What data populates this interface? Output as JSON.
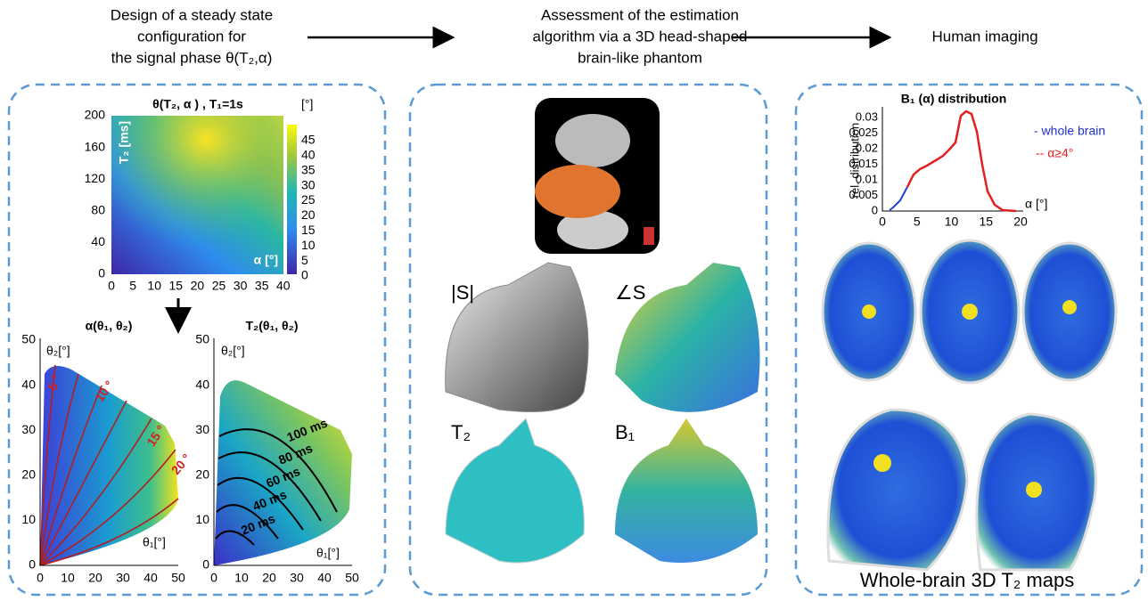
{
  "header": {
    "step1": [
      "Design of a steady state",
      "configuration for",
      "the signal phase θ(T₂,α)"
    ],
    "step2": [
      "Assessment of the estimation",
      "algorithm via a 3D head-shaped",
      "brain-like phantom"
    ],
    "step3": "Human imaging"
  },
  "panel1": {
    "heatmap": {
      "title": "θ(T₂, α ) , T₁=1s",
      "ylabel": "T₂ [ms]",
      "xlabel": "α [°]",
      "yticks": [
        0,
        40,
        80,
        120,
        160,
        200
      ],
      "xticks": [
        0,
        5,
        10,
        15,
        20,
        25,
        30,
        35,
        40
      ],
      "colorbar_unit": "[°]",
      "colorbar_ticks": [
        0,
        5,
        10,
        15,
        20,
        25,
        30,
        35,
        40,
        45
      ]
    },
    "alpha_map": {
      "title": "α(θ₁, θ₂)",
      "ylabel": "θ₂[°]",
      "xlabel": "θ₁[°]",
      "ticks": [
        0,
        10,
        20,
        30,
        40,
        50
      ],
      "contour_labels": [
        "5 °",
        "10 °",
        "15 °",
        "20 °"
      ]
    },
    "t2_map": {
      "title": "T₂(θ₁, θ₂)",
      "ylabel": "θ₂[°]",
      "xlabel": "θ₁[°]",
      "ticks": [
        0,
        10,
        20,
        30,
        40,
        50
      ],
      "contour_labels": [
        "20 ms",
        "40 ms",
        "60 ms",
        "80 ms",
        "100 ms"
      ]
    }
  },
  "panel2": {
    "labels": [
      "|S|",
      "∠S",
      "T₂",
      "B₁"
    ]
  },
  "panel3": {
    "plot": {
      "title": "B₁ (α) distribution",
      "ylabel": "rel. distribution",
      "xlabel": "α [°]",
      "yticks": [
        0,
        0.005,
        0.01,
        0.015,
        0.02,
        0.025,
        0.03
      ],
      "xticks": [
        0,
        5,
        10,
        15,
        20
      ],
      "legend": [
        "- whole brain",
        "-- α≥4°"
      ]
    },
    "caption": "Whole-brain 3D T₂ maps"
  }
}
